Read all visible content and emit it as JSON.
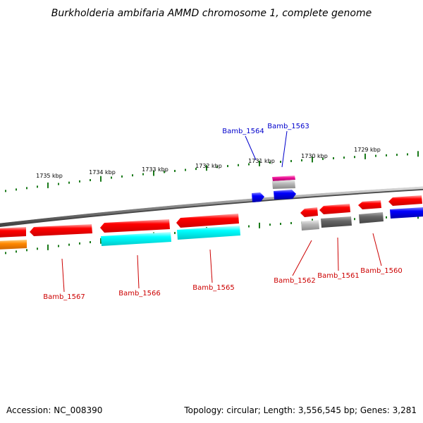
{
  "title": "Burkholderia ambifaria AMMD chromosome 1, complete genome",
  "footer": {
    "accession": "Accession: NC_008390",
    "summary": "Topology: circular; Length: 3,556,545 bp; Genes: 3,281"
  },
  "kbp_ticks": [
    "1735 kbp",
    "1734 kbp",
    "1733 kbp",
    "1732 kbp",
    "1731 kbp",
    "1730 kbp",
    "1729 kbp"
  ],
  "gene_labels": [
    "Bamb_1564",
    "Bamb_1563",
    "Bamb_1567",
    "Bamb_1566",
    "Bamb_1565",
    "Bamb_1562",
    "Bamb_1561",
    "Bamb_1560"
  ],
  "colors": {
    "red": "#ff0000",
    "cyan": "#00ffff",
    "blue": "#0000ee",
    "magenta": "#ee1199",
    "gray": "#bbbbbb",
    "dark_gray": "#666666",
    "orange": "#ff8800",
    "tick_green": "#1a7a1a",
    "backbone": "#888888"
  }
}
